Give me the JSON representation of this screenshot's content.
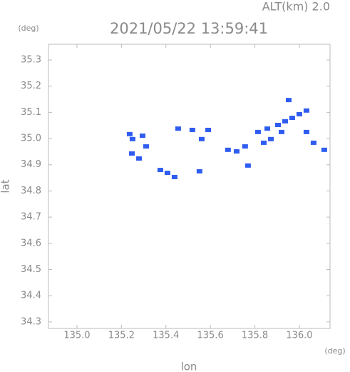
{
  "chart_data": {
    "type": "scatter",
    "title": "2021/05/22 13:59:41",
    "subtitle": "ALT(km) 2.0",
    "x_label": "lon",
    "y_label": "lat",
    "x_unit": "(deg)",
    "y_unit": "(deg)",
    "color": "#2f5cf0",
    "x": [
      135.237,
      135.25,
      135.295,
      135.311,
      135.247,
      135.279,
      135.375,
      135.407,
      135.439,
      135.519,
      135.59,
      135.561,
      135.679,
      135.718,
      135.756,
      135.814,
      135.856,
      135.904,
      135.936,
      135.968,
      136.0,
      136.032,
      135.952,
      135.92,
      135.872,
      136.032,
      136.064,
      136.112,
      135.84,
      135.455,
      135.551,
      135.769
    ],
    "y": [
      35.017,
      34.998,
      35.011,
      34.97,
      34.943,
      34.924,
      34.88,
      34.869,
      34.853,
      35.033,
      35.033,
      34.998,
      34.957,
      34.951,
      34.97,
      35.025,
      35.038,
      35.052,
      35.066,
      35.079,
      35.093,
      35.107,
      35.147,
      35.025,
      34.998,
      35.025,
      34.984,
      34.957,
      34.984,
      35.038,
      34.875,
      34.897
    ],
    "xlim": [
      134.872,
      136.138
    ],
    "ylim": [
      34.275,
      35.36
    ],
    "xticks": [
      {
        "value": 135,
        "label": "135.0"
      },
      135.2,
      135.4,
      135.6,
      135.8,
      {
        "value": 136,
        "label": "136.0"
      }
    ],
    "yticks": [
      34.3,
      34.4,
      34.5,
      34.6,
      34.7,
      34.8,
      34.9,
      {
        "value": 35,
        "label": "35.0"
      },
      35.1,
      35.2,
      35.3
    ],
    "grid": false
  }
}
